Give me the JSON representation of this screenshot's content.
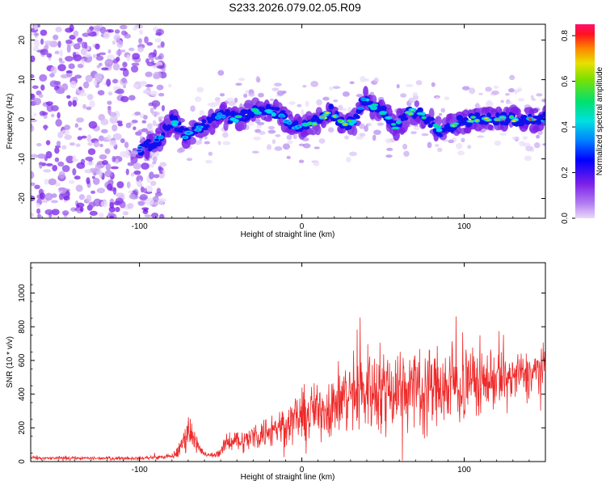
{
  "title": "S233.2026.079.02.05.R09",
  "chart_data": [
    {
      "type": "heatmap",
      "name": "spectrogram",
      "xlabel": "Height of straight line (km)",
      "ylabel": "Frequency (Hz)",
      "xlim": [
        -167,
        150
      ],
      "ylim": [
        -25,
        24
      ],
      "xticks": [
        -100,
        0,
        100
      ],
      "yticks": [
        -20,
        -10,
        0,
        10,
        20
      ],
      "colorbar": {
        "label": "Normalized spectral amplitude",
        "range": [
          0.0,
          0.85
        ],
        "ticks": [
          0.0,
          0.2,
          0.4,
          0.6,
          0.8
        ],
        "colormap": [
          "#dcc6f5",
          "#a064ee",
          "#7a1fe8",
          "#3a10e0",
          "#0000ff",
          "#0080ff",
          "#00e0e0",
          "#00e080",
          "#40e020",
          "#a0e000",
          "#e8e000",
          "#ff9000",
          "#ff3000",
          "#ff1050"
        ]
      },
      "ridge": {
        "description": "main signal ridge (frequency in Hz vs height in km) with peak normalized amplitude",
        "points": [
          {
            "x": -98,
            "f": -7.5,
            "amp": 0.25
          },
          {
            "x": -88,
            "f": -5,
            "amp": 0.35
          },
          {
            "x": -80,
            "f": 0,
            "amp": 0.45
          },
          {
            "x": -72,
            "f": -4,
            "amp": 0.4
          },
          {
            "x": -62,
            "f": -2,
            "amp": 0.3
          },
          {
            "x": -50,
            "f": 1,
            "amp": 0.4
          },
          {
            "x": -40,
            "f": 0,
            "amp": 0.45
          },
          {
            "x": -30,
            "f": 2,
            "amp": 0.5
          },
          {
            "x": -20,
            "f": 2,
            "amp": 0.45
          },
          {
            "x": -12,
            "f": 1,
            "amp": 0.35
          },
          {
            "x": -5,
            "f": -2,
            "amp": 0.35
          },
          {
            "x": 5,
            "f": -1,
            "amp": 0.55
          },
          {
            "x": 12,
            "f": 0,
            "amp": 0.8
          },
          {
            "x": 18,
            "f": 2,
            "amp": 0.5
          },
          {
            "x": 25,
            "f": -1,
            "amp": 0.65
          },
          {
            "x": 32,
            "f": -1,
            "amp": 0.45
          },
          {
            "x": 38,
            "f": 5,
            "amp": 0.35
          },
          {
            "x": 45,
            "f": 3,
            "amp": 0.5
          },
          {
            "x": 52,
            "f": 1,
            "amp": 0.45
          },
          {
            "x": 58,
            "f": -2,
            "amp": 0.5
          },
          {
            "x": 67,
            "f": 2,
            "amp": 0.6
          },
          {
            "x": 75,
            "f": 1,
            "amp": 0.45
          },
          {
            "x": 85,
            "f": -3,
            "amp": 0.45
          },
          {
            "x": 95,
            "f": -1,
            "amp": 0.6
          },
          {
            "x": 105,
            "f": 0,
            "amp": 0.55
          },
          {
            "x": 112,
            "f": 0,
            "amp": 0.65
          },
          {
            "x": 122,
            "f": 0,
            "amp": 0.85
          },
          {
            "x": 130,
            "f": 0,
            "amp": 0.6
          },
          {
            "x": 140,
            "f": 0,
            "amp": 0.8
          },
          {
            "x": 148,
            "f": 0,
            "amp": 0.75
          }
        ]
      },
      "noise": {
        "description": "uniform low-amplitude noise blobs across all frequencies",
        "x_range": [
          -167,
          -95
        ],
        "typical_amp": 0.2
      }
    },
    {
      "type": "line",
      "name": "snr",
      "xlabel": "Height of straight line (km)",
      "ylabel": "SNR (10 * v/v)",
      "xlim": [
        -167,
        150
      ],
      "ylim": [
        0,
        1180
      ],
      "xticks": [
        -100,
        0,
        100
      ],
      "yticks": [
        0,
        200,
        400,
        600,
        800,
        1000
      ],
      "color": "#ee2a2a",
      "envelope": {
        "description": "mean and spread of the fluctuating SNR trace as a function of height",
        "x": [
          -167,
          -100,
          -80,
          -75,
          -70,
          -66,
          -62,
          -58,
          -54,
          -50,
          -46,
          -42,
          -38,
          -35,
          -30,
          -20,
          -10,
          0,
          10,
          20,
          30,
          40,
          50,
          60,
          70,
          80,
          90,
          100,
          110,
          120,
          130,
          140,
          150
        ],
        "mean": [
          20,
          20,
          30,
          70,
          200,
          130,
          60,
          35,
          40,
          60,
          110,
          140,
          120,
          120,
          150,
          180,
          230,
          270,
          300,
          340,
          400,
          430,
          430,
          450,
          440,
          440,
          450,
          470,
          480,
          490,
          500,
          520,
          560
        ],
        "spread": [
          14,
          14,
          20,
          70,
          160,
          100,
          40,
          20,
          25,
          40,
          80,
          100,
          90,
          100,
          120,
          150,
          180,
          220,
          250,
          290,
          350,
          380,
          380,
          400,
          380,
          370,
          360,
          340,
          300,
          260,
          220,
          200,
          180
        ]
      }
    }
  ]
}
